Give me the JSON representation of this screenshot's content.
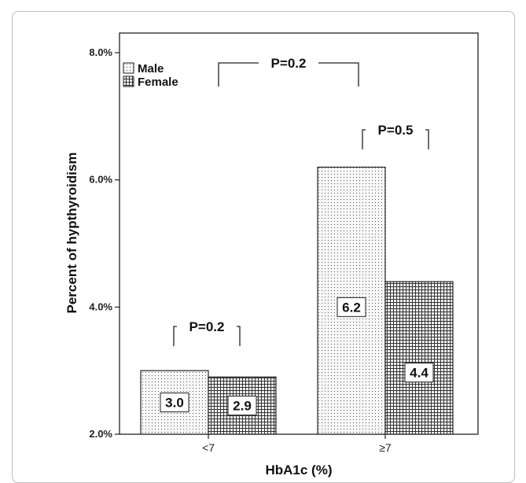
{
  "chart_data": {
    "type": "bar",
    "title": "",
    "xlabel": "HbA1c (%)",
    "ylabel": "Percent of hypthyroidism",
    "categories": [
      "<7",
      "≥7"
    ],
    "series": [
      {
        "name": "Male",
        "values": [
          3.0,
          6.2
        ],
        "pattern": "dots"
      },
      {
        "name": "Female",
        "values": [
          2.9,
          4.4
        ],
        "pattern": "grid"
      }
    ],
    "data_labels": [
      [
        "3.0",
        "2.9"
      ],
      [
        "6.2",
        "4.4"
      ]
    ],
    "ylim": [
      2.0,
      8.0
    ],
    "yticks": [
      2.0,
      4.0,
      6.0,
      8.0
    ],
    "ytick_labels": [
      "2.0%",
      "4.0%",
      "6.0%",
      "8.0%"
    ],
    "grid": false,
    "legend_position": "top-left",
    "annotations": [
      {
        "label": "P=0.2",
        "scope": "between-groups"
      },
      {
        "label": "P=0.5",
        "scope": "≥7"
      },
      {
        "label": "P=0.2",
        "scope": "<7"
      }
    ],
    "colors": {
      "bar_fill": "#f4f4f4",
      "bar_edge": "#222222",
      "frame": "#bdbdbd"
    }
  }
}
